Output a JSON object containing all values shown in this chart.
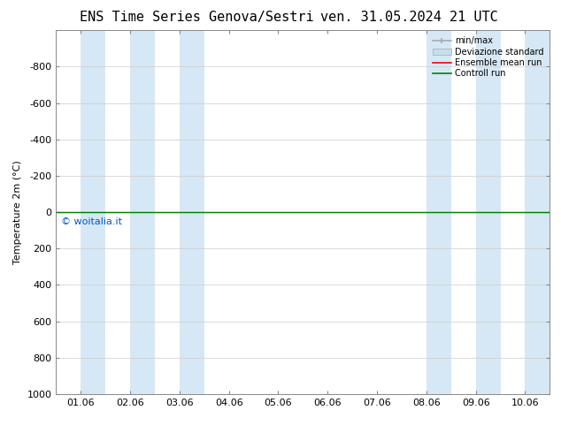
{
  "title_left": "ENS Time Series Genova/Sestri",
  "title_right": "ven. 31.05.2024 21 UTC",
  "ylabel": "Temperature 2m (°C)",
  "watermark": "© woitalia.it",
  "watermark_color": "#0055cc",
  "ylim_bottom": 1000,
  "ylim_top": -1000,
  "yticks": [
    -800,
    -600,
    -400,
    -200,
    0,
    200,
    400,
    600,
    800,
    1000
  ],
  "xtick_labels": [
    "01.06",
    "02.06",
    "03.06",
    "04.06",
    "05.06",
    "06.06",
    "07.06",
    "08.06",
    "09.06",
    "10.06"
  ],
  "n_xticks": 10,
  "background_color": "#ffffff",
  "plot_bg_color": "#ffffff",
  "shaded_color": "#d6e8f5",
  "shaded_bands": [
    [
      0.0,
      0.5
    ],
    [
      1.0,
      1.5
    ],
    [
      2.0,
      2.5
    ],
    [
      7.0,
      7.5
    ],
    [
      8.0,
      8.5
    ],
    [
      9.0,
      9.5
    ]
  ],
  "xlim": [
    -0.5,
    9.5
  ],
  "ensemble_mean_color": "#ff0000",
  "control_run_color": "#008000",
  "legend_labels": [
    "min/max",
    "Deviazione standard",
    "Ensemble mean run",
    "Controll run"
  ],
  "title_fontsize": 11,
  "axis_fontsize": 8,
  "tick_fontsize": 8,
  "watermark_fontsize": 8
}
